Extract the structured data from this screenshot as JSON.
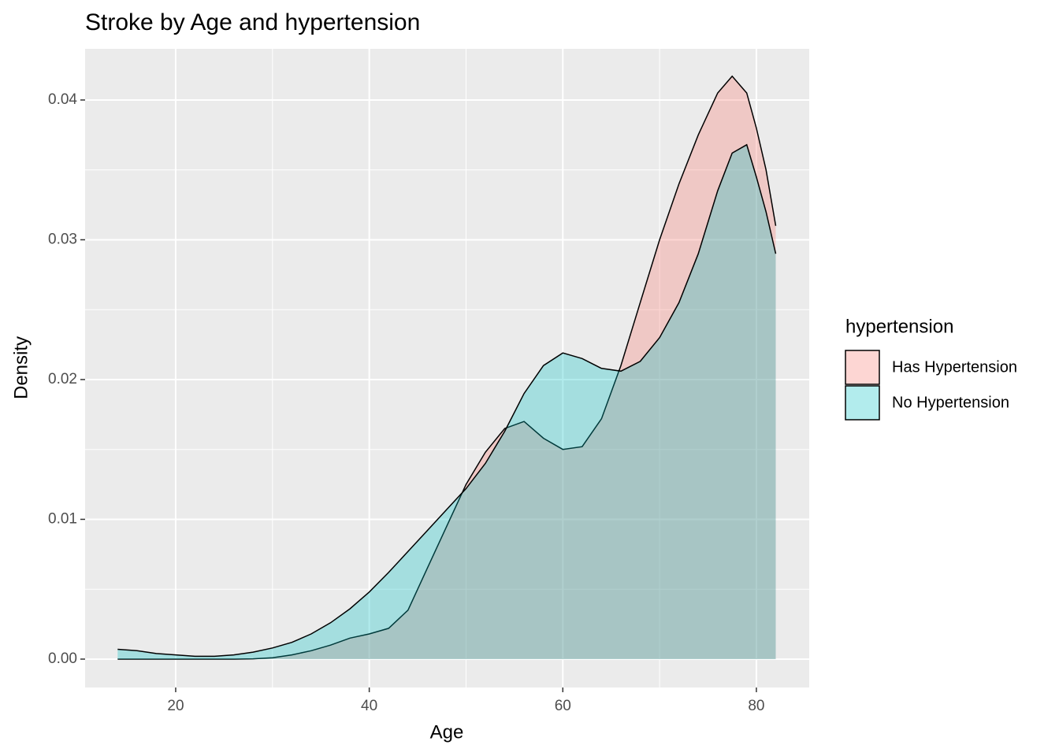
{
  "chart_data": {
    "type": "density",
    "title": "Stroke by Age and hypertension",
    "x_label": "Age",
    "y_label": "Density",
    "legend_title": "hypertension",
    "legend_position": "right",
    "grid": true,
    "minor_grid": true,
    "xlim": [
      10.64,
      85.46
    ],
    "xticks": [
      20,
      40,
      60,
      80
    ],
    "ylim": [
      -0.00203,
      0.04366
    ],
    "yticks": [
      {
        "value": 0,
        "label": "0.00"
      },
      0.01,
      0.02,
      0.03,
      0.04
    ],
    "x": [
      14,
      16,
      18,
      20,
      22,
      24,
      26,
      28,
      30,
      32,
      34,
      36,
      38,
      40,
      42,
      44,
      46,
      48,
      50,
      52,
      54,
      56,
      58,
      60,
      62,
      64,
      66,
      68,
      70,
      72,
      74,
      76,
      77.5,
      79,
      80,
      81,
      82
    ],
    "series": [
      {
        "name": "Has Hypertension",
        "color": "#F8766D",
        "values": [
          0,
          0,
          0,
          0,
          0,
          0,
          0,
          2e-05,
          0.0001,
          0.0003,
          0.0006,
          0.001,
          0.0015,
          0.0018,
          0.0022,
          0.0035,
          0.0065,
          0.0095,
          0.0125,
          0.0148,
          0.0165,
          0.017,
          0.0158,
          0.015,
          0.0152,
          0.0172,
          0.021,
          0.0255,
          0.03,
          0.034,
          0.0375,
          0.0405,
          0.0417,
          0.0405,
          0.038,
          0.035,
          0.031
        ]
      },
      {
        "name": "No Hypertension",
        "color": "#00BFC4",
        "values": [
          0.0007,
          0.0006,
          0.0004,
          0.0003,
          0.0002,
          0.0002,
          0.0003,
          0.0005,
          0.0008,
          0.0012,
          0.0018,
          0.0026,
          0.0036,
          0.0048,
          0.0062,
          0.0077,
          0.0092,
          0.0107,
          0.0122,
          0.014,
          0.0163,
          0.019,
          0.021,
          0.0219,
          0.0215,
          0.0208,
          0.0206,
          0.0213,
          0.023,
          0.0255,
          0.029,
          0.0335,
          0.0362,
          0.0368,
          0.0345,
          0.032,
          0.029
        ]
      }
    ]
  }
}
